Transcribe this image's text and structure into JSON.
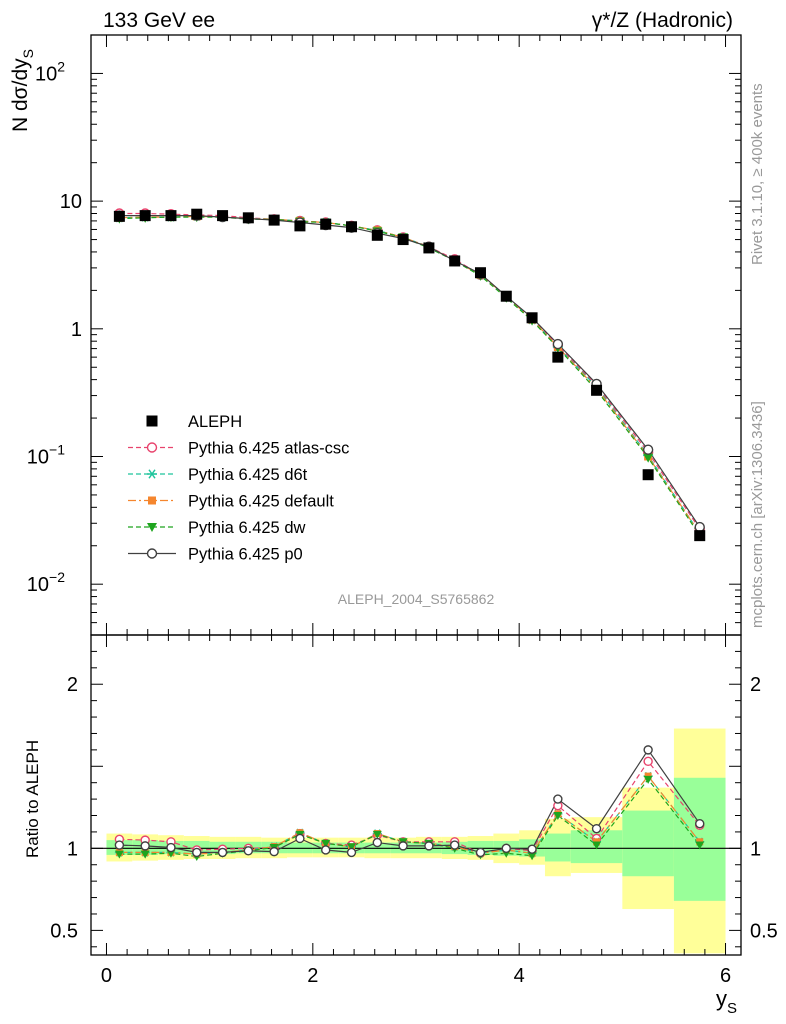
{
  "header": {
    "left_title": "133 GeV ee",
    "right_title": "γ*/Z (Hadronic)"
  },
  "side_text": {
    "rivet": "Rivet 3.1.10, ≥ 400k events",
    "mcplots": "mcplots.cern.ch [arXiv:1306.3436]"
  },
  "analysis_label": "ALEPH_2004_S5765862",
  "colors": {
    "data": "#000000",
    "atlas_csc": "#e8436d",
    "d6t": "#1fc49c",
    "default": "#f5862e",
    "dw": "#1ea51e",
    "p0": "#404040",
    "band_inner": "#99ff99",
    "band_outer": "#ffff99"
  },
  "chart_data": [
    {
      "type": "scatter",
      "title": "133 GeV ee",
      "ylabel": "N dσ/dy_S",
      "ylabel_main": "N dσ/dy",
      "ylabel_sub": "S",
      "yscale": "log",
      "xlim": [
        -0.15,
        6.15
      ],
      "ylim": [
        0.004,
        200
      ],
      "yticks": [
        {
          "value": 100,
          "base": "10",
          "exp": "2"
        },
        {
          "value": 10,
          "base": "10",
          "exp": ""
        },
        {
          "value": 1,
          "base": "1",
          "exp": ""
        },
        {
          "value": 0.1,
          "base": "10",
          "exp": "−1"
        },
        {
          "value": 0.01,
          "base": "10",
          "exp": "−2"
        }
      ],
      "x": [
        0.125,
        0.375,
        0.625,
        0.875,
        1.125,
        1.375,
        1.625,
        1.875,
        2.125,
        2.375,
        2.625,
        2.875,
        3.125,
        3.375,
        3.625,
        3.875,
        4.125,
        4.375,
        4.75,
        5.25,
        5.75
      ],
      "data": {
        "name": "ALEPH",
        "values": [
          7.6,
          7.7,
          7.7,
          7.9,
          7.7,
          7.4,
          7.1,
          6.4,
          6.6,
          6.3,
          5.4,
          5.0,
          4.3,
          3.4,
          2.75,
          1.8,
          1.22,
          0.6,
          0.33,
          0.072,
          0.024
        ]
      },
      "series": [
        {
          "name": "Pythia 6.425 atlas-csc",
          "key": "atlas_csc",
          "marker": "open-circle",
          "dash": "5,3",
          "values": [
            8.0,
            8.0,
            7.9,
            7.8,
            7.7,
            7.4,
            7.2,
            7.0,
            6.8,
            6.4,
            5.9,
            5.2,
            4.4,
            3.5,
            2.65,
            1.8,
            1.2,
            0.74,
            0.36,
            0.108,
            0.027
          ]
        },
        {
          "name": "Pythia 6.425 d6t",
          "key": "d6t",
          "marker": "asterisk",
          "dash": "5,3",
          "values": [
            7.4,
            7.5,
            7.5,
            7.6,
            7.5,
            7.3,
            7.2,
            7.0,
            6.8,
            6.4,
            5.9,
            5.2,
            4.4,
            3.4,
            2.65,
            1.8,
            1.18,
            0.72,
            0.35,
            0.102,
            0.025
          ]
        },
        {
          "name": "Pythia 6.425 default",
          "key": "default",
          "marker": "filled-square",
          "dash": "8,3,2,3",
          "values": [
            7.4,
            7.5,
            7.5,
            7.6,
            7.5,
            7.3,
            7.2,
            7.0,
            6.8,
            6.4,
            5.9,
            5.2,
            4.4,
            3.4,
            2.65,
            1.8,
            1.18,
            0.72,
            0.34,
            0.1,
            0.025
          ]
        },
        {
          "name": "Pythia 6.425 dw",
          "key": "dw",
          "marker": "filled-triangle-down",
          "dash": "5,3",
          "values": [
            7.3,
            7.4,
            7.5,
            7.5,
            7.5,
            7.2,
            7.2,
            6.9,
            6.8,
            6.4,
            5.8,
            5.2,
            4.3,
            3.4,
            2.6,
            1.75,
            1.16,
            0.71,
            0.33,
            0.098,
            0.024
          ]
        },
        {
          "name": "Pythia 6.425 p0",
          "key": "p0",
          "marker": "open-circle",
          "dash": "",
          "values": [
            7.7,
            7.7,
            7.7,
            7.7,
            7.5,
            7.3,
            7.1,
            6.8,
            6.5,
            6.2,
            5.6,
            5.1,
            4.4,
            3.4,
            2.7,
            1.8,
            1.22,
            0.76,
            0.37,
            0.113,
            0.028
          ]
        }
      ]
    },
    {
      "type": "scatter",
      "ylabel": "Ratio to ALEPH",
      "xlabel": "y_S",
      "xlabel_main": "y",
      "xlabel_sub": "S",
      "xlim": [
        -0.15,
        6.15
      ],
      "ylim": [
        0.35,
        2.3
      ],
      "xticks": [
        "0",
        "2",
        "4",
        "6"
      ],
      "yticks_left": [
        "0.5",
        "1",
        "2"
      ],
      "yticks_right": [
        "0.5",
        "1",
        "2"
      ],
      "reference": 1.0,
      "bins": [
        [
          0,
          0.25
        ],
        [
          0.25,
          0.5
        ],
        [
          0.5,
          0.75
        ],
        [
          0.75,
          1.0
        ],
        [
          1.0,
          1.25
        ],
        [
          1.25,
          1.5
        ],
        [
          1.5,
          1.75
        ],
        [
          1.75,
          2.0
        ],
        [
          2.0,
          2.25
        ],
        [
          2.25,
          2.5
        ],
        [
          2.5,
          2.75
        ],
        [
          2.75,
          3.0
        ],
        [
          3.0,
          3.25
        ],
        [
          3.25,
          3.5
        ],
        [
          3.5,
          3.75
        ],
        [
          3.75,
          4.0
        ],
        [
          4.0,
          4.25
        ],
        [
          4.25,
          4.5
        ],
        [
          4.5,
          5.0
        ],
        [
          5.0,
          5.5
        ],
        [
          5.5,
          6.0
        ]
      ],
      "band_inner": [
        [
          0.96,
          1.05
        ],
        [
          0.96,
          1.05
        ],
        [
          0.965,
          1.045
        ],
        [
          0.965,
          1.045
        ],
        [
          0.965,
          1.04
        ],
        [
          0.97,
          1.04
        ],
        [
          0.97,
          1.04
        ],
        [
          0.97,
          1.035
        ],
        [
          0.97,
          1.035
        ],
        [
          0.97,
          1.035
        ],
        [
          0.97,
          1.035
        ],
        [
          0.97,
          1.035
        ],
        [
          0.97,
          1.035
        ],
        [
          0.965,
          1.04
        ],
        [
          0.96,
          1.045
        ],
        [
          0.955,
          1.045
        ],
        [
          0.95,
          1.055
        ],
        [
          0.92,
          1.09
        ],
        [
          0.91,
          1.11
        ],
        [
          0.83,
          1.23
        ],
        [
          0.68,
          1.43
        ]
      ],
      "band_outer": [
        [
          0.92,
          1.09
        ],
        [
          0.925,
          1.085
        ],
        [
          0.93,
          1.08
        ],
        [
          0.935,
          1.075
        ],
        [
          0.935,
          1.07
        ],
        [
          0.94,
          1.07
        ],
        [
          0.94,
          1.065
        ],
        [
          0.945,
          1.065
        ],
        [
          0.945,
          1.065
        ],
        [
          0.945,
          1.065
        ],
        [
          0.94,
          1.065
        ],
        [
          0.94,
          1.065
        ],
        [
          0.94,
          1.07
        ],
        [
          0.935,
          1.07
        ],
        [
          0.93,
          1.075
        ],
        [
          0.91,
          1.09
        ],
        [
          0.9,
          1.11
        ],
        [
          0.83,
          1.18
        ],
        [
          0.85,
          1.19
        ],
        [
          0.63,
          1.37
        ],
        [
          0.36,
          1.73
        ]
      ],
      "series": [
        {
          "key": "atlas_csc",
          "marker": "open-circle",
          "dash": "5,3",
          "values": [
            1.055,
            1.05,
            1.04,
            0.99,
            0.995,
            1.0,
            1.005,
            1.09,
            1.03,
            1.02,
            1.08,
            1.04,
            1.04,
            1.04,
            0.97,
            1.0,
            0.985,
            1.26,
            1.06,
            1.53,
            1.14
          ]
        },
        {
          "key": "d6t",
          "marker": "asterisk",
          "dash": "5,3",
          "values": [
            0.975,
            0.975,
            0.975,
            0.965,
            0.975,
            0.99,
            1.01,
            1.095,
            1.03,
            1.01,
            1.09,
            1.04,
            1.03,
            1.01,
            0.97,
            0.99,
            0.97,
            1.21,
            1.04,
            1.44,
            1.04
          ]
        },
        {
          "key": "default",
          "marker": "filled-square",
          "dash": "8,3,2,3",
          "values": [
            0.975,
            0.975,
            0.975,
            0.965,
            0.975,
            0.99,
            1.01,
            1.095,
            1.03,
            1.01,
            1.09,
            1.04,
            1.03,
            1.01,
            0.97,
            0.99,
            0.97,
            1.21,
            1.04,
            1.44,
            1.04
          ]
        },
        {
          "key": "dw",
          "marker": "filled-triangle-down",
          "dash": "5,3",
          "values": [
            0.965,
            0.965,
            0.97,
            0.95,
            0.97,
            0.985,
            1.005,
            1.085,
            1.03,
            1.01,
            1.085,
            1.04,
            1.03,
            1.0,
            0.96,
            0.97,
            0.955,
            1.2,
            1.02,
            1.42,
            1.02
          ]
        },
        {
          "key": "p0",
          "marker": "open-circle",
          "dash": "",
          "values": [
            1.02,
            1.015,
            1.005,
            0.975,
            0.975,
            0.985,
            0.98,
            1.06,
            0.99,
            0.975,
            1.035,
            1.015,
            1.015,
            1.02,
            0.975,
            1.0,
            0.995,
            1.3,
            1.12,
            1.6,
            1.15
          ]
        }
      ]
    }
  ]
}
